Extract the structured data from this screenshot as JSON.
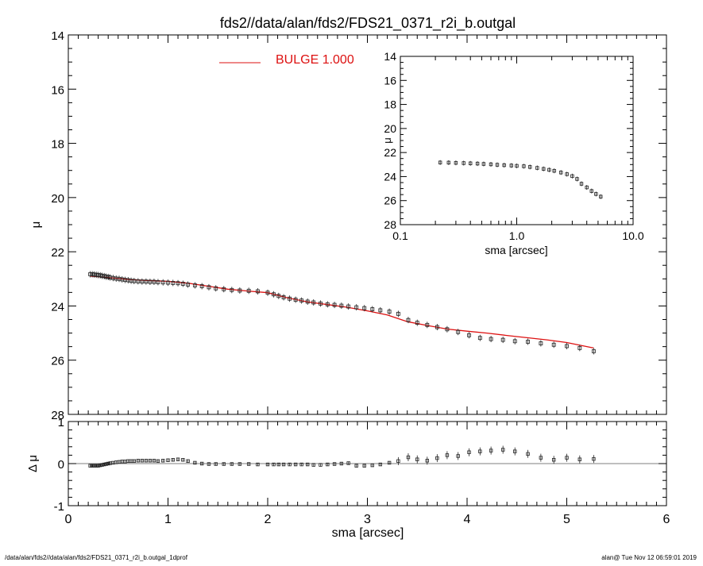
{
  "colors": {
    "axis": "#000000",
    "model": "#dd1111",
    "points": "#222222",
    "legend_text": "#dd1111"
  },
  "title": "fds2//data/alan/fds2/FDS21_0371_r2i_b.outgal",
  "footer": {
    "left": "/data/alan/fds2//data/alan/fds2/FDS21_0371_r2i_b.outgal_1dprof",
    "right": "alan@  Tue Nov 12 06:59:01 2019"
  },
  "legend": {
    "label": "BULGE  1.000"
  },
  "chart_data": [
    {
      "id": "main",
      "type": "scatter",
      "xlabel": "",
      "ylabel": "μ",
      "xlim": [
        0,
        6
      ],
      "ylim": [
        28,
        14
      ],
      "inverted_y": true,
      "y_ticks": [
        "14",
        "16",
        "18",
        "20",
        "22",
        "24",
        "26",
        "28"
      ],
      "series": [
        {
          "name": "data",
          "marker": "square",
          "x": [
            0.22,
            0.24,
            0.26,
            0.28,
            0.3,
            0.32,
            0.34,
            0.36,
            0.38,
            0.4,
            0.42,
            0.45,
            0.48,
            0.51,
            0.54,
            0.57,
            0.6,
            0.63,
            0.66,
            0.7,
            0.74,
            0.78,
            0.82,
            0.86,
            0.9,
            0.95,
            1.0,
            1.05,
            1.1,
            1.15,
            1.2,
            1.27,
            1.34,
            1.41,
            1.48,
            1.56,
            1.64,
            1.72,
            1.81,
            1.9,
            2.0,
            2.06,
            2.11,
            2.16,
            2.22,
            2.28,
            2.34,
            2.4,
            2.46,
            2.53,
            2.6,
            2.67,
            2.74,
            2.81,
            2.89,
            2.97,
            3.05,
            3.13,
            3.22,
            3.31,
            3.41,
            3.5,
            3.6,
            3.7,
            3.8,
            3.91,
            4.02,
            4.13,
            4.24,
            4.36,
            4.48,
            4.61,
            4.74,
            4.87,
            5.0,
            5.13,
            5.27
          ],
          "y": [
            22.83,
            22.83,
            22.84,
            22.85,
            22.86,
            22.87,
            22.89,
            22.9,
            22.92,
            22.93,
            22.95,
            22.97,
            22.99,
            23.0,
            23.02,
            23.04,
            23.05,
            23.07,
            23.08,
            23.09,
            23.1,
            23.1,
            23.11,
            23.11,
            23.12,
            23.13,
            23.14,
            23.15,
            23.16,
            23.18,
            23.21,
            23.24,
            23.27,
            23.31,
            23.35,
            23.38,
            23.41,
            23.43,
            23.44,
            23.46,
            23.51,
            23.57,
            23.63,
            23.68,
            23.73,
            23.77,
            23.8,
            23.84,
            23.87,
            23.91,
            23.94,
            23.96,
            23.99,
            24.02,
            24.05,
            24.08,
            24.12,
            24.16,
            24.21,
            24.29,
            24.52,
            24.62,
            24.7,
            24.78,
            24.86,
            24.96,
            25.08,
            25.18,
            25.22,
            25.25,
            25.3,
            25.32,
            25.38,
            25.43,
            25.48,
            25.55,
            25.67
          ]
        },
        {
          "name": "BULGE  1.000",
          "marker": "line",
          "x": [
            0.22,
            0.4,
            0.6,
            0.8,
            1.0,
            1.2,
            1.4,
            1.6,
            1.8,
            2.0,
            2.2,
            2.4,
            2.6,
            2.8,
            3.0,
            3.2,
            3.4,
            3.6,
            3.8,
            4.0,
            4.2,
            4.4,
            4.6,
            4.8,
            5.0,
            5.27
          ],
          "y": [
            22.9,
            22.95,
            23.02,
            23.06,
            23.09,
            23.16,
            23.27,
            23.38,
            23.45,
            23.51,
            23.7,
            23.85,
            23.95,
            24.05,
            24.18,
            24.33,
            24.58,
            24.72,
            24.85,
            24.93,
            25.0,
            25.09,
            25.17,
            25.25,
            25.35,
            25.55
          ]
        }
      ]
    },
    {
      "id": "inset",
      "type": "scatter",
      "xlabel": "sma [arcsec]",
      "ylabel": "μ",
      "x_scale": "log",
      "xlim": [
        0.1,
        10.0
      ],
      "ylim": [
        28,
        14
      ],
      "inverted_y": true,
      "x_ticks": [
        "0.1",
        "1.0",
        "10.0"
      ],
      "y_ticks": [
        "14",
        "16",
        "18",
        "20",
        "22",
        "24",
        "26",
        "28"
      ],
      "series": [
        {
          "name": "data",
          "marker": "square",
          "x": [
            0.22,
            0.26,
            0.3,
            0.35,
            0.4,
            0.46,
            0.52,
            0.6,
            0.68,
            0.78,
            0.9,
            1.0,
            1.15,
            1.3,
            1.5,
            1.7,
            1.9,
            2.1,
            2.4,
            2.7,
            3.0,
            3.3,
            3.6,
            4.0,
            4.4,
            4.8,
            5.27
          ],
          "y": [
            22.83,
            22.84,
            22.86,
            22.88,
            22.9,
            22.92,
            22.95,
            22.98,
            23.02,
            23.05,
            23.08,
            23.11,
            23.14,
            23.2,
            23.28,
            23.36,
            23.44,
            23.52,
            23.66,
            23.8,
            23.96,
            24.2,
            24.6,
            24.9,
            25.2,
            25.45,
            25.67
          ]
        }
      ]
    },
    {
      "id": "residual",
      "type": "scatter",
      "xlabel": "sma [arcsec]",
      "ylabel": "Δ μ",
      "xlim": [
        0,
        6
      ],
      "ylim": [
        -1,
        1
      ],
      "x_ticks": [
        "0",
        "1",
        "2",
        "3",
        "4",
        "5",
        "6"
      ],
      "y_ticks": [
        "-1",
        "0",
        "1"
      ],
      "series": [
        {
          "name": "residual",
          "marker": "square",
          "x": [
            0.22,
            0.24,
            0.26,
            0.28,
            0.3,
            0.32,
            0.34,
            0.36,
            0.38,
            0.4,
            0.42,
            0.45,
            0.48,
            0.51,
            0.54,
            0.57,
            0.6,
            0.63,
            0.66,
            0.7,
            0.74,
            0.78,
            0.82,
            0.86,
            0.9,
            0.95,
            1.0,
            1.05,
            1.1,
            1.15,
            1.2,
            1.27,
            1.34,
            1.41,
            1.48,
            1.56,
            1.64,
            1.72,
            1.81,
            1.9,
            2.0,
            2.06,
            2.11,
            2.16,
            2.22,
            2.28,
            2.34,
            2.4,
            2.46,
            2.53,
            2.6,
            2.67,
            2.74,
            2.81,
            2.89,
            2.97,
            3.05,
            3.13,
            3.22,
            3.31,
            3.41,
            3.5,
            3.6,
            3.7,
            3.8,
            3.91,
            4.02,
            4.13,
            4.24,
            4.36,
            4.48,
            4.61,
            4.74,
            4.87,
            5.0,
            5.13,
            5.27
          ],
          "y": [
            -0.05,
            -0.05,
            -0.05,
            -0.05,
            -0.05,
            -0.04,
            -0.03,
            -0.02,
            -0.01,
            0.0,
            0.01,
            0.02,
            0.03,
            0.04,
            0.05,
            0.05,
            0.06,
            0.06,
            0.06,
            0.07,
            0.07,
            0.07,
            0.07,
            0.07,
            0.06,
            0.07,
            0.08,
            0.09,
            0.1,
            0.09,
            0.06,
            0.02,
            0.0,
            -0.01,
            -0.01,
            -0.01,
            -0.01,
            -0.01,
            -0.01,
            -0.02,
            -0.02,
            -0.02,
            -0.02,
            -0.02,
            -0.02,
            -0.02,
            -0.02,
            -0.02,
            -0.03,
            -0.03,
            -0.02,
            -0.01,
            0.0,
            0.01,
            -0.05,
            -0.05,
            -0.04,
            -0.02,
            0.02,
            0.06,
            0.15,
            0.1,
            0.07,
            0.13,
            0.2,
            0.18,
            0.27,
            0.29,
            0.31,
            0.33,
            0.29,
            0.23,
            0.14,
            0.09,
            0.14,
            0.1,
            0.11
          ]
        }
      ]
    }
  ]
}
